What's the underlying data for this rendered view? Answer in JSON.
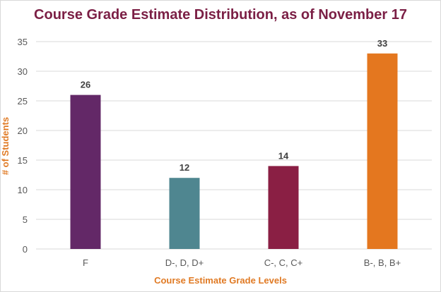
{
  "chart_data": {
    "type": "bar",
    "title": "Course Grade Estimate Distribution, as of November 17",
    "xlabel": "Course Estimate Grade Levels",
    "ylabel": "# of Students",
    "categories": [
      "F",
      "D-, D, D+",
      "C-, C, C+",
      "B-, B, B+"
    ],
    "values": [
      26,
      12,
      14,
      33
    ],
    "ylim": [
      0,
      35
    ],
    "yticks": [
      0,
      5,
      10,
      15,
      20,
      25,
      30,
      35
    ],
    "grid": true,
    "legend": "none",
    "data_labels": true
  },
  "colors": {
    "bars": [
      "#632867",
      "#4f8690",
      "#8a1f44",
      "#e4771f"
    ],
    "title": "#7b1f45",
    "axis_titles": "#e07a24",
    "grid": "#d9d9d9",
    "tick_text": "#595959",
    "data_label_text": "#404040"
  }
}
